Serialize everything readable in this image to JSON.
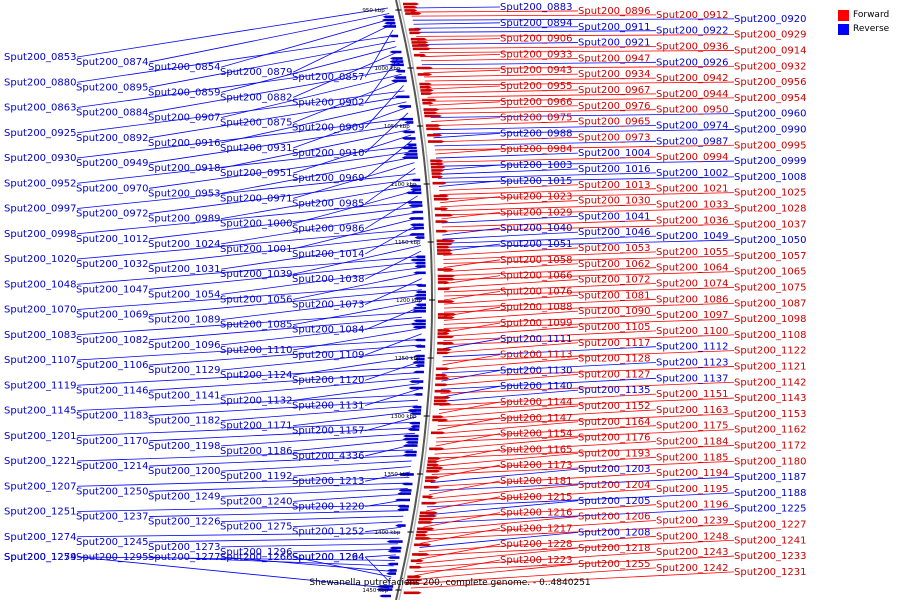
{
  "caption": "Shewanella putrefaciens 200, complete genome. - 0..4840251",
  "legend": [
    {
      "label": "Forward",
      "color": "#ff0000"
    },
    {
      "label": "Reverse",
      "color": "#0000ff"
    }
  ],
  "colors": {
    "forward": "#cc0000",
    "reverse": "#0000cc",
    "forward_line": "#ff0000",
    "reverse_line": "#0000ff",
    "backbone": "#888888"
  },
  "scale_ticks": [
    "950 kbp",
    "1000 kbp",
    "1050 kbp",
    "1100 kbp",
    "1150 kbp",
    "1200 kbp",
    "1250 kbp",
    "1300 kbp",
    "1350 kbp",
    "1400 kbp",
    "1450 kbp"
  ],
  "left_labels": [
    "Sput200_0853",
    "Sput200_0874",
    "Sput200_0854",
    "Sput200_0879",
    "Sput200_0857",
    "Sput200_0880",
    "Sput200_0895",
    "Sput200_0859",
    "Sput200_0882",
    "Sput200_0902",
    "Sput200_0863",
    "Sput200_0884",
    "Sput200_0907",
    "Sput200_0875",
    "Sput200_0909",
    "Sput200_0925",
    "Sput200_0892",
    "Sput200_0916",
    "Sput200_0931",
    "Sput200_0910",
    "Sput200_0930",
    "Sput200_0949",
    "Sput200_0918",
    "Sput200_0951",
    "Sput200_0969",
    "Sput200_0952",
    "Sput200_0970",
    "Sput200_0953",
    "Sput200_0971",
    "Sput200_0985",
    "Sput200_0997",
    "Sput200_0972",
    "Sput200_0989",
    "Sput200_1000",
    "Sput200_0986",
    "Sput200_0998",
    "Sput200_1012",
    "Sput200_1024",
    "Sput200_1001",
    "Sput200_1014",
    "Sput200_1020",
    "Sput200_1032",
    "Sput200_1031",
    "Sput200_1039",
    "Sput200_1038",
    "Sput200_1048",
    "Sput200_1047",
    "Sput200_1054",
    "Sput200_1056",
    "Sput200_1073",
    "Sput200_1070",
    "Sput200_1069",
    "Sput200_1089",
    "Sput200_1085",
    "Sput200_1084",
    "Sput200_1083",
    "Sput200_1082",
    "Sput200_1096",
    "Sput200_1110",
    "Sput200_1109",
    "Sput200_1107",
    "Sput200_1106",
    "Sput200_1129",
    "Sput200_1124",
    "Sput200_1120",
    "Sput200_1119",
    "Sput200_1146",
    "Sput200_1141",
    "Sput200_1132",
    "Sput200_1131",
    "Sput200_1145",
    "Sput200_1183",
    "Sput200_1182",
    "Sput200_1171",
    "Sput200_1157",
    "Sput200_1201",
    "Sput200_1170",
    "Sput200_1198",
    "Sput200_1186",
    "Sput200_4336",
    "Sput200_1221",
    "Sput200_1214",
    "Sput200_1200",
    "Sput200_1192",
    "Sput200_1213",
    "Sput200_1207",
    "Sput200_1250",
    "Sput200_1249",
    "Sput200_1240",
    "Sput200_1220",
    "Sput200_1251",
    "Sput200_1237",
    "Sput200_1226",
    "Sput200_1275",
    "Sput200_1252",
    "Sput200_1274",
    "Sput200_1245",
    "Sput200_1273",
    "Sput200_1296",
    "Sput200_1264",
    "Sput200_1254",
    "Sput200_1295",
    "Sput200_1277",
    "Sput200_1266",
    "Sput200_1294",
    "Sput200_1279"
  ],
  "right_labels": [
    {
      "t": "Sput200_0883",
      "s": "r"
    },
    {
      "t": "Sput200_0896",
      "s": "f"
    },
    {
      "t": "Sput200_0912",
      "s": "f"
    },
    {
      "t": "Sput200_0920",
      "s": "r"
    },
    {
      "t": "Sput200_0894",
      "s": "r"
    },
    {
      "t": "Sput200_0911",
      "s": "r"
    },
    {
      "t": "Sput200_0922",
      "s": "r"
    },
    {
      "t": "Sput200_0929",
      "s": "f"
    },
    {
      "t": "Sput200_0906",
      "s": "f"
    },
    {
      "t": "Sput200_0921",
      "s": "r"
    },
    {
      "t": "Sput200_0936",
      "s": "f"
    },
    {
      "t": "Sput200_0914",
      "s": "f"
    },
    {
      "t": "Sput200_0933",
      "s": "f"
    },
    {
      "t": "Sput200_0947",
      "s": "f"
    },
    {
      "t": "Sput200_0926",
      "s": "r"
    },
    {
      "t": "Sput200_0932",
      "s": "f"
    },
    {
      "t": "Sput200_0943",
      "s": "f"
    },
    {
      "t": "Sput200_0934",
      "s": "f"
    },
    {
      "t": "Sput200_0942",
      "s": "f"
    },
    {
      "t": "Sput200_0956",
      "s": "f"
    },
    {
      "t": "Sput200_0955",
      "s": "f"
    },
    {
      "t": "Sput200_0967",
      "s": "f"
    },
    {
      "t": "Sput200_0944",
      "s": "f"
    },
    {
      "t": "Sput200_0954",
      "s": "f"
    },
    {
      "t": "Sput200_0966",
      "s": "f"
    },
    {
      "t": "Sput200_0976",
      "s": "f"
    },
    {
      "t": "Sput200_0950",
      "s": "f"
    },
    {
      "t": "Sput200_0960",
      "s": "r"
    },
    {
      "t": "Sput200_0975",
      "s": "f"
    },
    {
      "t": "Sput200_0965",
      "s": "f"
    },
    {
      "t": "Sput200_0974",
      "s": "r"
    },
    {
      "t": "Sput200_0990",
      "s": "r"
    },
    {
      "t": "Sput200_0988",
      "s": "r"
    },
    {
      "t": "Sput200_0973",
      "s": "f"
    },
    {
      "t": "Sput200_0987",
      "s": "r"
    },
    {
      "t": "Sput200_0995",
      "s": "f"
    },
    {
      "t": "Sput200_0984",
      "s": "f"
    },
    {
      "t": "Sput200_1004",
      "s": "r"
    },
    {
      "t": "Sput200_0994",
      "s": "f"
    },
    {
      "t": "Sput200_0999",
      "s": "r"
    },
    {
      "t": "Sput200_1003",
      "s": "r"
    },
    {
      "t": "Sput200_1016",
      "s": "r"
    },
    {
      "t": "Sput200_1002",
      "s": "r"
    },
    {
      "t": "Sput200_1008",
      "s": "r"
    },
    {
      "t": "Sput200_1015",
      "s": "r"
    },
    {
      "t": "Sput200_1013",
      "s": "f"
    },
    {
      "t": "Sput200_1021",
      "s": "f"
    },
    {
      "t": "Sput200_1025",
      "s": "f"
    },
    {
      "t": "Sput200_1023",
      "s": "f"
    },
    {
      "t": "Sput200_1030",
      "s": "f"
    },
    {
      "t": "Sput200_1033",
      "s": "f"
    },
    {
      "t": "Sput200_1028",
      "s": "f"
    },
    {
      "t": "Sput200_1029",
      "s": "f"
    },
    {
      "t": "Sput200_1041",
      "s": "r"
    },
    {
      "t": "Sput200_1036",
      "s": "f"
    },
    {
      "t": "Sput200_1037",
      "s": "f"
    },
    {
      "t": "Sput200_1040",
      "s": "r"
    },
    {
      "t": "Sput200_1046",
      "s": "r"
    },
    {
      "t": "Sput200_1049",
      "s": "r"
    },
    {
      "t": "Sput200_1050",
      "s": "r"
    },
    {
      "t": "Sput200_1051",
      "s": "r"
    },
    {
      "t": "Sput200_1053",
      "s": "f"
    },
    {
      "t": "Sput200_1055",
      "s": "f"
    },
    {
      "t": "Sput200_1057",
      "s": "f"
    },
    {
      "t": "Sput200_1058",
      "s": "f"
    },
    {
      "t": "Sput200_1062",
      "s": "f"
    },
    {
      "t": "Sput200_1064",
      "s": "f"
    },
    {
      "t": "Sput200_1065",
      "s": "f"
    },
    {
      "t": "Sput200_1066",
      "s": "f"
    },
    {
      "t": "Sput200_1072",
      "s": "f"
    },
    {
      "t": "Sput200_1074",
      "s": "f"
    },
    {
      "t": "Sput200_1075",
      "s": "f"
    },
    {
      "t": "Sput200_1076",
      "s": "f"
    },
    {
      "t": "Sput200_1081",
      "s": "f"
    },
    {
      "t": "Sput200_1086",
      "s": "f"
    },
    {
      "t": "Sput200_1087",
      "s": "f"
    },
    {
      "t": "Sput200_1088",
      "s": "f"
    },
    {
      "t": "Sput200_1090",
      "s": "f"
    },
    {
      "t": "Sput200_1097",
      "s": "f"
    },
    {
      "t": "Sput200_1098",
      "s": "f"
    },
    {
      "t": "Sput200_1099",
      "s": "f"
    },
    {
      "t": "Sput200_1105",
      "s": "f"
    },
    {
      "t": "Sput200_1100",
      "s": "f"
    },
    {
      "t": "Sput200_1108",
      "s": "f"
    },
    {
      "t": "Sput200_1111",
      "s": "r"
    },
    {
      "t": "Sput200_1117",
      "s": "f"
    },
    {
      "t": "Sput200_1112",
      "s": "r"
    },
    {
      "t": "Sput200_1122",
      "s": "f"
    },
    {
      "t": "Sput200_1113",
      "s": "f"
    },
    {
      "t": "Sput200_1128",
      "s": "f"
    },
    {
      "t": "Sput200_1123",
      "s": "r"
    },
    {
      "t": "Sput200_1121",
      "s": "f"
    },
    {
      "t": "Sput200_1130",
      "s": "r"
    },
    {
      "t": "Sput200_1127",
      "s": "f"
    },
    {
      "t": "Sput200_1137",
      "s": "r"
    },
    {
      "t": "Sput200_1142",
      "s": "f"
    },
    {
      "t": "Sput200_1140",
      "s": "r"
    },
    {
      "t": "Sput200_1135",
      "s": "r"
    },
    {
      "t": "Sput200_1151",
      "s": "f"
    },
    {
      "t": "Sput200_1143",
      "s": "f"
    },
    {
      "t": "Sput200_1144",
      "s": "f"
    },
    {
      "t": "Sput200_1152",
      "s": "f"
    },
    {
      "t": "Sput200_1163",
      "s": "f"
    },
    {
      "t": "Sput200_1153",
      "s": "f"
    },
    {
      "t": "Sput200_1147",
      "s": "f"
    },
    {
      "t": "Sput200_1164",
      "s": "f"
    },
    {
      "t": "Sput200_1175",
      "s": "f"
    },
    {
      "t": "Sput200_1162",
      "s": "f"
    },
    {
      "t": "Sput200_1154",
      "s": "f"
    },
    {
      "t": "Sput200_1176",
      "s": "f"
    },
    {
      "t": "Sput200_1184",
      "s": "f"
    },
    {
      "t": "Sput200_1172",
      "s": "f"
    },
    {
      "t": "Sput200_1165",
      "s": "f"
    },
    {
      "t": "Sput200_1193",
      "s": "f"
    },
    {
      "t": "Sput200_1185",
      "s": "f"
    },
    {
      "t": "Sput200_1180",
      "s": "f"
    },
    {
      "t": "Sput200_1173",
      "s": "f"
    },
    {
      "t": "Sput200_1203",
      "s": "r"
    },
    {
      "t": "Sput200_1194",
      "s": "f"
    },
    {
      "t": "Sput200_1187",
      "s": "r"
    },
    {
      "t": "Sput200_1181",
      "s": "f"
    },
    {
      "t": "Sput200_1204",
      "s": "f"
    },
    {
      "t": "Sput200_1195",
      "s": "f"
    },
    {
      "t": "Sput200_1188",
      "s": "r"
    },
    {
      "t": "Sput200_1215",
      "s": "f"
    },
    {
      "t": "Sput200_1205",
      "s": "r"
    },
    {
      "t": "Sput200_1196",
      "s": "f"
    },
    {
      "t": "Sput200_1225",
      "s": "r"
    },
    {
      "t": "Sput200_1216",
      "s": "f"
    },
    {
      "t": "Sput200_1206",
      "s": "f"
    },
    {
      "t": "Sput200_1239",
      "s": "f"
    },
    {
      "t": "Sput200_1227",
      "s": "f"
    },
    {
      "t": "Sput200_1217",
      "s": "f"
    },
    {
      "t": "Sput200_1208",
      "s": "r"
    },
    {
      "t": "Sput200_1248",
      "s": "f"
    },
    {
      "t": "Sput200_1241",
      "s": "f"
    },
    {
      "t": "Sput200_1228",
      "s": "f"
    },
    {
      "t": "Sput200_1218",
      "s": "f"
    },
    {
      "t": "Sput200_1243",
      "s": "f"
    },
    {
      "t": "Sput200_1233",
      "s": "f"
    },
    {
      "t": "Sput200_1223",
      "s": "f"
    },
    {
      "t": "Sput200_1255",
      "s": "f"
    },
    {
      "t": "Sput200_1242",
      "s": "f"
    },
    {
      "t": "Sput200_1231",
      "s": "f"
    }
  ]
}
